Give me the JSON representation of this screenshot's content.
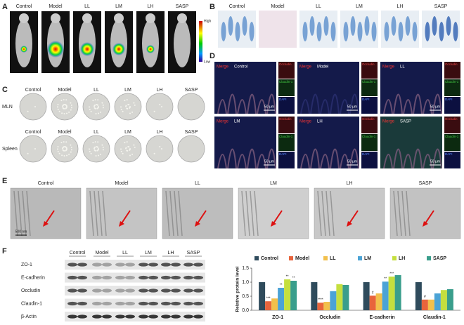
{
  "panels": {
    "A": {
      "letter": "A",
      "labels": [
        "Control",
        "Model",
        "LL",
        "LM",
        "LH",
        "SASP"
      ],
      "colorbar": {
        "high": "High",
        "low": "Low"
      }
    },
    "B": {
      "letter": "B",
      "labels": [
        "Control",
        "Model",
        "LL",
        "LM",
        "LH",
        "SASP"
      ]
    },
    "C": {
      "letter": "C",
      "rows": [
        {
          "name": "MLN",
          "labels": [
            "Control",
            "Model",
            "LL",
            "LM",
            "LH",
            "SASP"
          ]
        },
        {
          "name": "Spleen",
          "labels": [
            "Control",
            "Model",
            "LL",
            "LM",
            "LH",
            "SASP"
          ]
        }
      ]
    },
    "D": {
      "letter": "D",
      "images": [
        {
          "merge": "Merge",
          "group": "Control",
          "channels": [
            "Occludin",
            "Claudin-1",
            "DAPI"
          ],
          "scale": "50 μm"
        },
        {
          "merge": "Merge",
          "group": "Model",
          "channels": [
            "Occludin",
            "Claudin-1",
            "DAPI"
          ],
          "scale": "50 μm"
        },
        {
          "merge": "Merge",
          "group": "LL",
          "channels": [
            "Occludin",
            "Claudin-1",
            "DAPI"
          ],
          "scale": "50 μm"
        },
        {
          "merge": "Merge",
          "group": "LM",
          "channels": [
            "Occludin",
            "Claudin-1",
            "DAPI"
          ],
          "scale": "50 μm"
        },
        {
          "merge": "Merge",
          "group": "LH",
          "channels": [
            "Occludin",
            "Claudin-1",
            "DAPI"
          ],
          "scale": "50 μm"
        },
        {
          "merge": "Merge",
          "group": "SASP",
          "channels": [
            "Occludin",
            "Claudin-1",
            "DAPI"
          ],
          "scale": "50 μm"
        }
      ]
    },
    "E": {
      "letter": "E",
      "labels": [
        "Control",
        "Model",
        "LL",
        "LM",
        "LH",
        "SASP"
      ],
      "scale": "500 nm"
    },
    "F": {
      "letter": "F",
      "blot": {
        "groups": [
          "Control",
          "Model",
          "LL",
          "LM",
          "LH",
          "SASP"
        ],
        "proteins": [
          "ZO-1",
          "E-cadherin",
          "Occludin",
          "Claudin-1",
          "β-Actin"
        ]
      }
    }
  },
  "chart_data": {
    "type": "bar",
    "ylabel": "Relative protein level",
    "categories": [
      "ZO-1",
      "Occludin",
      "E-cadherin",
      "Claudin-1"
    ],
    "ylim": [
      0,
      1.5
    ],
    "yticks": [
      {
        "value": 0,
        "label": "0.0"
      },
      0.5,
      {
        "value": 1,
        "label": "1.0"
      },
      1.5
    ],
    "series": [
      {
        "name": "Control",
        "color": "#2f4b5c",
        "values": [
          1.0,
          1.0,
          1.0,
          1.0
        ],
        "significance": [
          null,
          null,
          null,
          null
        ]
      },
      {
        "name": "Model",
        "color": "#e8643c",
        "values": [
          0.32,
          0.27,
          0.52,
          0.38
        ],
        "significance": [
          "***",
          "****",
          "#",
          "#"
        ]
      },
      {
        "name": "LL",
        "color": "#f2c04c",
        "values": [
          0.42,
          0.3,
          0.6,
          0.38
        ],
        "significance": [
          null,
          null,
          null,
          null
        ]
      },
      {
        "name": "LM",
        "color": "#4ba3d6",
        "values": [
          0.8,
          0.68,
          1.02,
          0.6
        ],
        "significance": [
          "**",
          null,
          "**",
          null
        ]
      },
      {
        "name": "LH",
        "color": "#c5df3e",
        "values": [
          1.1,
          0.93,
          1.2,
          0.72
        ],
        "significance": [
          "**",
          null,
          "***",
          null
        ]
      },
      {
        "name": "SASP",
        "color": "#3a9e8c",
        "values": [
          1.05,
          0.9,
          1.25,
          0.75
        ],
        "significance": [
          "**",
          null,
          null,
          null
        ]
      }
    ]
  }
}
